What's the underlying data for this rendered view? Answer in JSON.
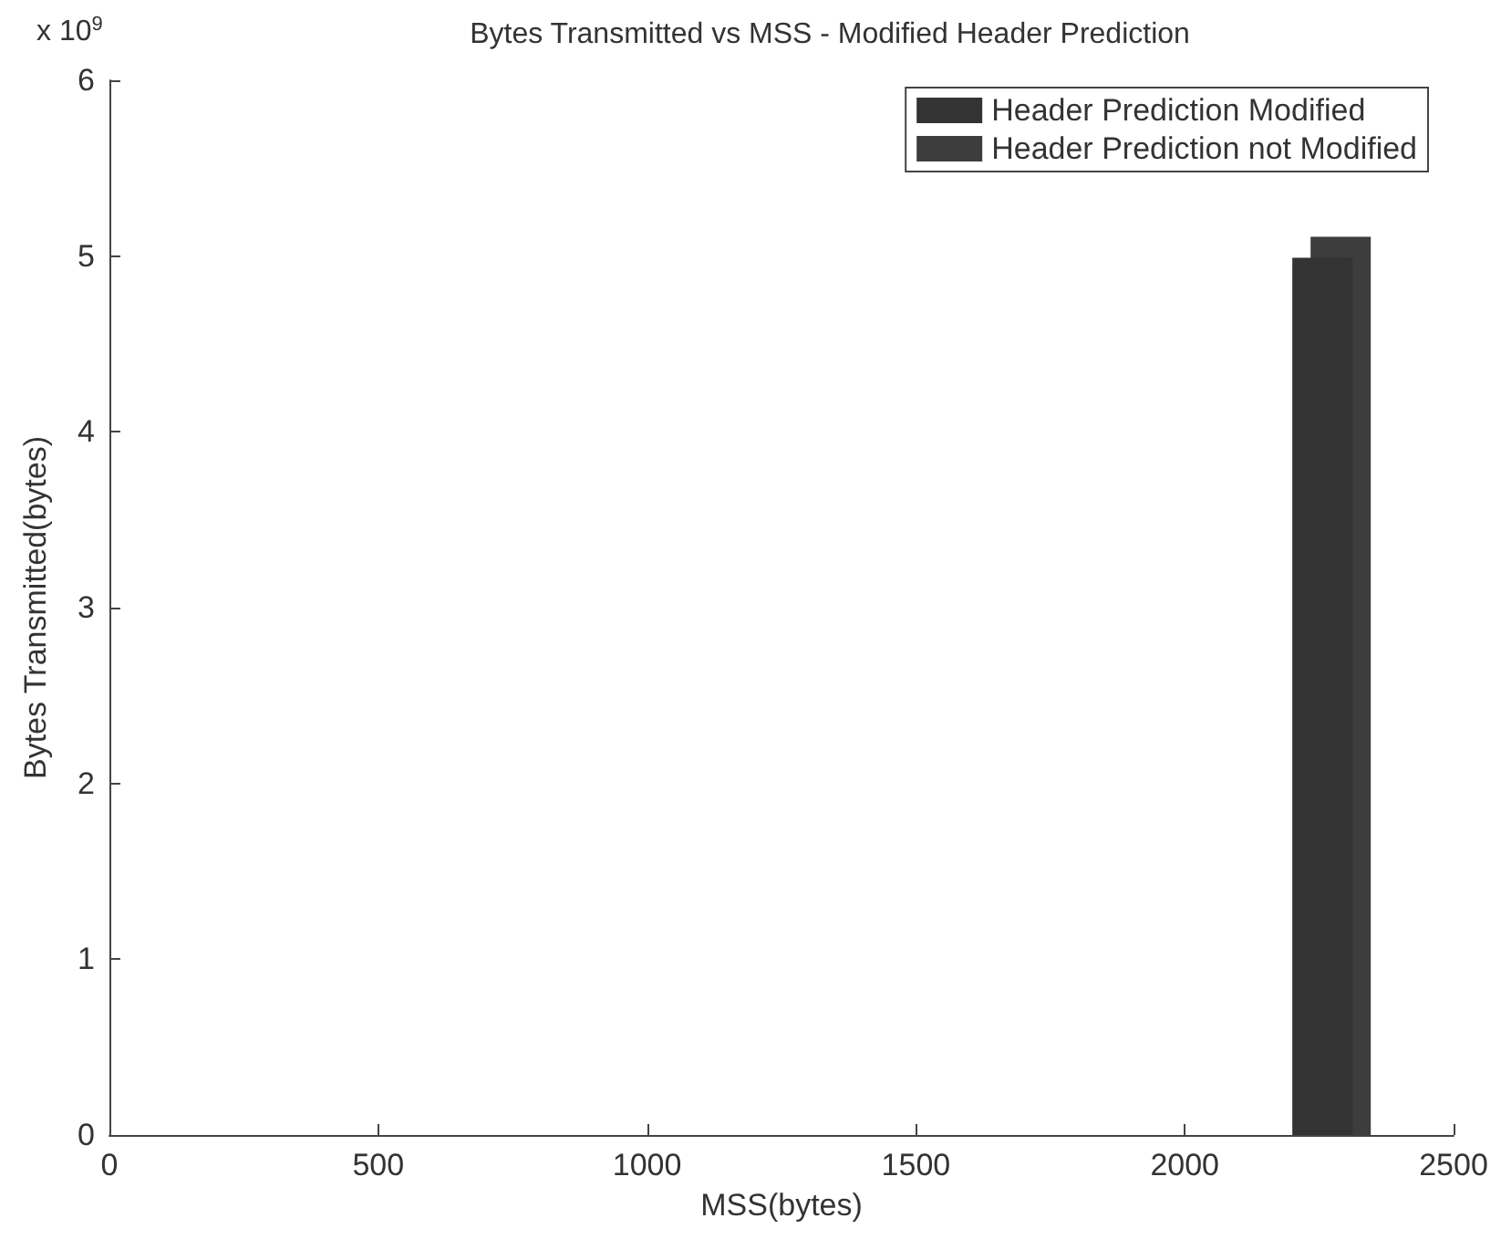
{
  "chart_data": {
    "type": "bar",
    "title": "Bytes Transmitted vs MSS - Modified Header Prediction",
    "xlabel": "MSS(bytes)",
    "ylabel": "Bytes Transmitted(bytes)",
    "annotations": [
      "x 10$^{9}$"
    ],
    "series": [
      {
        "name": "Header Prediction Modified",
        "color": "#333333",
        "x": [
          2256
        ],
        "values": [
          4.99
        ]
      },
      {
        "name": "Header Prediction not Modified",
        "color": "#3d3d3d",
        "x": [
          2290
        ],
        "values": [
          5.11
        ]
      }
    ],
    "xlim": [
      0,
      2500
    ],
    "xticks": [
      0,
      500,
      1000,
      1500,
      2000,
      2500
    ],
    "ylim": [
      0,
      6
    ],
    "yticks": [
      0,
      1,
      2,
      3,
      4,
      5,
      6
    ],
    "grid": false,
    "legend": "top right"
  }
}
